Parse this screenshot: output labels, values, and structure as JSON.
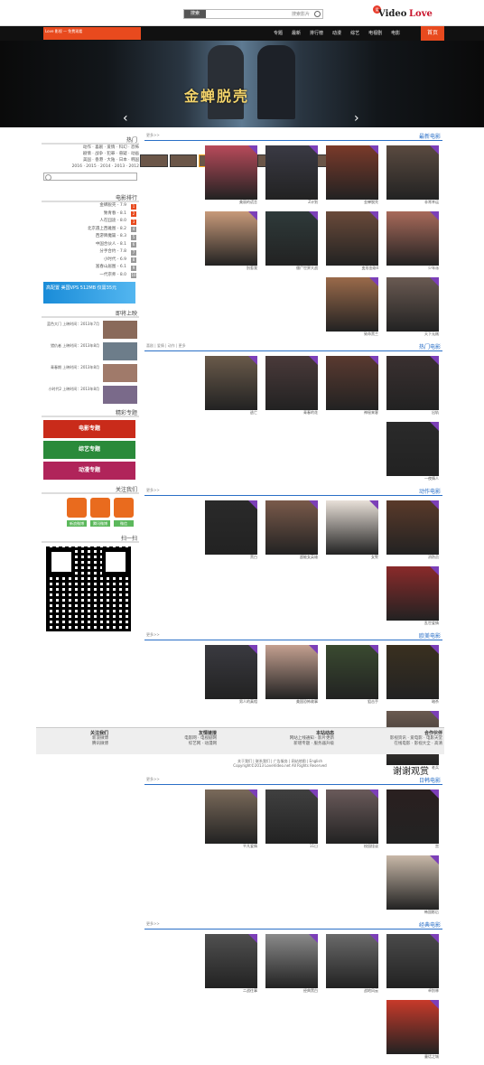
{
  "header": {
    "logo_love": "Love",
    "logo_video": "Video",
    "logo_badge": "爱",
    "search_button": "搜索",
    "search_placeholder": "搜索影片",
    "nav_home": "首页",
    "nav_items": [
      "电影",
      "电视剧",
      "综艺",
      "动漫",
      "排行榜",
      "最新",
      "专题"
    ],
    "ad_text": "Love 影视 — 免费观看"
  },
  "banner": {
    "title": "金蝉脱壳"
  },
  "left": {
    "tags_head": "热门",
    "tags": [
      "动作 · 喜剧 · 爱情 · 科幻 · 恐怖",
      "剧情 · 战争 · 犯罪 · 悬疑 · 动画",
      "美国 · 香港 · 大陆 · 日本 · 韩国",
      "2016 · 2015 · 2014 · 2013 · 2012"
    ],
    "rank_head": "电影排行",
    "rank": [
      "金蝉脱壳 - 7.9",
      "致青春 - 8.1",
      "人在囧途 - 8.0",
      "北京遇上西雅图 - 8.2",
      "西游降魔篇 - 8.3",
      "中国合伙人 - 8.1",
      "分手合约 - 7.8",
      "小时代 - 6.9",
      "富春山居图 - 6.1",
      "一代宗师 - 8.0"
    ],
    "ad": "高配置 美国VPS 512MB 仅需35元",
    "hot_head": "即将上映",
    "hot": [
      "蓝色大门 上映时间：2013年7月",
      "猎仇者 上映时间：2013年8月",
      "青春期 上映时间：2013年8月",
      "小时代2 上映时间：2013年8月"
    ],
    "feature_head": "精彩专题",
    "promos": [
      "电影专题",
      "综艺专题",
      "动漫专题"
    ],
    "follow_head": "关注我们",
    "follow_btns": [
      "新浪微博",
      "腾讯微博",
      "微信"
    ],
    "qr_head": "扫一扫"
  },
  "sections": [
    {
      "title": "最新电影",
      "more": "更多>>",
      "items": [
        "非常幸运",
        "金蝉脱壳",
        "Z计划",
        "美丽的谎言",
        "少年派",
        "变形金刚4",
        "僵尸世界大战",
        "别惹我",
        "天下无贼",
        "致命黑兰"
      ]
    },
    {
      "title": "热门电影",
      "more": "喜剧 | 爱情 | 动作 | 更多",
      "items": [
        "出轨",
        "神秘来客",
        "青春的花",
        "逃亡",
        "一夜情人"
      ]
    },
    {
      "title": "动作电影",
      "more": "更多>>",
      "items": [
        "消防员",
        "女警",
        "超能女英雄",
        "黑白",
        "乱世爱情"
      ]
    },
    {
      "title": "欧美电影",
      "more": "更多>>",
      "items": [
        "暗杀",
        "狙击手",
        "美国恐怖故事",
        "男人的真相",
        "老兵"
      ]
    },
    {
      "title": "日韩电影",
      "more": "更多>>",
      "items": [
        "宫",
        "校园怪谈",
        "11日",
        "平凡爱情",
        "韩国影后"
      ]
    },
    {
      "title": "经典电影",
      "more": "更多>>",
      "items": [
        "卓别林",
        "战地风云",
        "经典黑白",
        "二战往事",
        "童话之城"
      ]
    }
  ],
  "footer": {
    "cols": [
      {
        "title": "合作伙伴",
        "lines": [
          "影视资讯 · 爱电影 · 电影天堂",
          "在线电影 · 影视大全 · 高清"
        ]
      },
      {
        "title": "本站动态",
        "lines": [
          "网站上线通知 · 影片更新",
          "新增专题 · 服务器升级"
        ]
      },
      {
        "title": "友情链接",
        "lines": [
          "电影网 · 电视剧网",
          "综艺网 · 动漫网"
        ]
      },
      {
        "title": "关注我们",
        "lines": [
          "新浪微博",
          "腾讯微博"
        ]
      }
    ],
    "links": "关于我们 | 联系我们 | 广告服务 | 网站地图 | English",
    "copyright": "Copyright©2013 LoveVideo.net All Rights Reserved",
    "signature": "谢谢观赏"
  }
}
